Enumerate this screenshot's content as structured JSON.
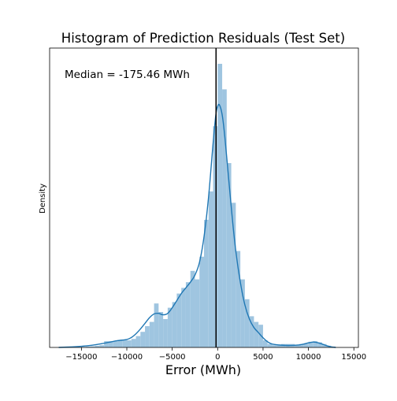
{
  "chart_data": {
    "type": "histogram",
    "title": "Histogram of Prediction Residuals (Test Set)",
    "xlabel": "Error (MWh)",
    "ylabel": "Density",
    "xlim": [
      -18500,
      15500
    ],
    "ylim": [
      0,
      1
    ],
    "grid": false,
    "x_ticks": [
      -15000,
      -10000,
      -5000,
      0,
      5000,
      10000,
      15000
    ],
    "x_tick_labels": [
      "−15000",
      "−10000",
      "−5000",
      "0",
      "5000",
      "10000",
      "15000"
    ],
    "annotation": "Median = -175.46 MWh",
    "vline_x": -175.46,
    "bar_color": "#9fc5e0",
    "kde_color": "#1f77b4",
    "vline_color": "#000000",
    "bins": [
      {
        "x0": -17500,
        "x1": -17000,
        "density": 0.0
      },
      {
        "x0": -17000,
        "x1": -16500,
        "density": 0.0
      },
      {
        "x0": -16500,
        "x1": -16000,
        "density": 0.0
      },
      {
        "x0": -16000,
        "x1": -15500,
        "density": 0.0
      },
      {
        "x0": -15500,
        "x1": -15000,
        "density": 0.0
      },
      {
        "x0": -15000,
        "x1": -14500,
        "density": 0.002
      },
      {
        "x0": -14500,
        "x1": -14000,
        "density": 0.003
      },
      {
        "x0": -14000,
        "x1": -13500,
        "density": 0.004
      },
      {
        "x0": -13500,
        "x1": -13000,
        "density": 0.006
      },
      {
        "x0": -13000,
        "x1": -12500,
        "density": 0.008
      },
      {
        "x0": -12500,
        "x1": -12000,
        "density": 0.022
      },
      {
        "x0": -12000,
        "x1": -11500,
        "density": 0.022
      },
      {
        "x0": -11500,
        "x1": -11000,
        "density": 0.022
      },
      {
        "x0": -11000,
        "x1": -10500,
        "density": 0.025
      },
      {
        "x0": -10500,
        "x1": -10000,
        "density": 0.025
      },
      {
        "x0": -10000,
        "x1": -9500,
        "density": 0.025
      },
      {
        "x0": -9500,
        "x1": -9000,
        "density": 0.03
      },
      {
        "x0": -9000,
        "x1": -8500,
        "density": 0.04
      },
      {
        "x0": -8500,
        "x1": -8000,
        "density": 0.055
      },
      {
        "x0": -8000,
        "x1": -7500,
        "density": 0.075
      },
      {
        "x0": -7500,
        "x1": -7000,
        "density": 0.09
      },
      {
        "x0": -7000,
        "x1": -6500,
        "density": 0.155
      },
      {
        "x0": -6500,
        "x1": -6000,
        "density": 0.125
      },
      {
        "x0": -6000,
        "x1": -5500,
        "density": 0.1
      },
      {
        "x0": -5500,
        "x1": -5000,
        "density": 0.14
      },
      {
        "x0": -5000,
        "x1": -4500,
        "density": 0.16
      },
      {
        "x0": -4500,
        "x1": -4000,
        "density": 0.19
      },
      {
        "x0": -4000,
        "x1": -3500,
        "density": 0.21
      },
      {
        "x0": -3500,
        "x1": -3000,
        "density": 0.23
      },
      {
        "x0": -3000,
        "x1": -2500,
        "density": 0.27
      },
      {
        "x0": -2500,
        "x1": -2000,
        "density": 0.24
      },
      {
        "x0": -2000,
        "x1": -1500,
        "density": 0.32
      },
      {
        "x0": -1500,
        "x1": -1000,
        "density": 0.45
      },
      {
        "x0": -1000,
        "x1": -500,
        "density": 0.55
      },
      {
        "x0": -500,
        "x1": 0,
        "density": 0.78
      },
      {
        "x0": 0,
        "x1": 500,
        "density": 1.0
      },
      {
        "x0": 500,
        "x1": 1000,
        "density": 0.91
      },
      {
        "x0": 1000,
        "x1": 1500,
        "density": 0.65
      },
      {
        "x0": 1500,
        "x1": 2000,
        "density": 0.51
      },
      {
        "x0": 2000,
        "x1": 2500,
        "density": 0.34
      },
      {
        "x0": 2500,
        "x1": 3000,
        "density": 0.24
      },
      {
        "x0": 3000,
        "x1": 3500,
        "density": 0.17
      },
      {
        "x0": 3500,
        "x1": 4000,
        "density": 0.11
      },
      {
        "x0": 4000,
        "x1": 4500,
        "density": 0.09
      },
      {
        "x0": 4500,
        "x1": 5000,
        "density": 0.08
      },
      {
        "x0": 5000,
        "x1": 5500,
        "density": 0.025
      },
      {
        "x0": 5500,
        "x1": 6000,
        "density": 0.012
      },
      {
        "x0": 6000,
        "x1": 6500,
        "density": 0.008
      },
      {
        "x0": 6500,
        "x1": 7000,
        "density": 0.01
      },
      {
        "x0": 7000,
        "x1": 7500,
        "density": 0.012
      },
      {
        "x0": 7500,
        "x1": 8000,
        "density": 0.012
      },
      {
        "x0": 8000,
        "x1": 8500,
        "density": 0.012
      },
      {
        "x0": 8500,
        "x1": 9000,
        "density": 0.01
      },
      {
        "x0": 9000,
        "x1": 9500,
        "density": 0.012
      },
      {
        "x0": 9500,
        "x1": 10000,
        "density": 0.013
      },
      {
        "x0": 10000,
        "x1": 10500,
        "density": 0.02
      },
      {
        "x0": 10500,
        "x1": 11000,
        "density": 0.022
      },
      {
        "x0": 11000,
        "x1": 11500,
        "density": 0.018
      },
      {
        "x0": 11500,
        "x1": 12000,
        "density": 0.012
      },
      {
        "x0": 12000,
        "x1": 12500,
        "density": 0.006
      },
      {
        "x0": 12500,
        "x1": 13000,
        "density": 0.003
      }
    ],
    "kde": [
      [
        -17500,
        0.0
      ],
      [
        -16000,
        0.002
      ],
      [
        -15000,
        0.004
      ],
      [
        -14000,
        0.007
      ],
      [
        -13000,
        0.012
      ],
      [
        -12000,
        0.018
      ],
      [
        -11000,
        0.024
      ],
      [
        -10000,
        0.028
      ],
      [
        -9500,
        0.035
      ],
      [
        -9000,
        0.048
      ],
      [
        -8500,
        0.065
      ],
      [
        -8000,
        0.085
      ],
      [
        -7500,
        0.105
      ],
      [
        -7000,
        0.118
      ],
      [
        -6500,
        0.12
      ],
      [
        -6000,
        0.115
      ],
      [
        -5500,
        0.12
      ],
      [
        -5000,
        0.14
      ],
      [
        -4500,
        0.165
      ],
      [
        -4000,
        0.19
      ],
      [
        -3500,
        0.21
      ],
      [
        -3000,
        0.23
      ],
      [
        -2500,
        0.255
      ],
      [
        -2000,
        0.3
      ],
      [
        -1500,
        0.39
      ],
      [
        -1000,
        0.53
      ],
      [
        -500,
        0.72
      ],
      [
        -200,
        0.82
      ],
      [
        0,
        0.85
      ],
      [
        200,
        0.855
      ],
      [
        500,
        0.82
      ],
      [
        800,
        0.74
      ],
      [
        1200,
        0.6
      ],
      [
        1600,
        0.46
      ],
      [
        2000,
        0.34
      ],
      [
        2500,
        0.23
      ],
      [
        3000,
        0.15
      ],
      [
        3500,
        0.1
      ],
      [
        4000,
        0.07
      ],
      [
        4500,
        0.052
      ],
      [
        5000,
        0.034
      ],
      [
        5500,
        0.02
      ],
      [
        6000,
        0.012
      ],
      [
        7000,
        0.008
      ],
      [
        8000,
        0.007
      ],
      [
        9000,
        0.009
      ],
      [
        9500,
        0.012
      ],
      [
        10000,
        0.016
      ],
      [
        10500,
        0.019
      ],
      [
        11000,
        0.017
      ],
      [
        11500,
        0.012
      ],
      [
        12000,
        0.006
      ],
      [
        12500,
        0.002
      ],
      [
        13000,
        0.0
      ]
    ]
  }
}
